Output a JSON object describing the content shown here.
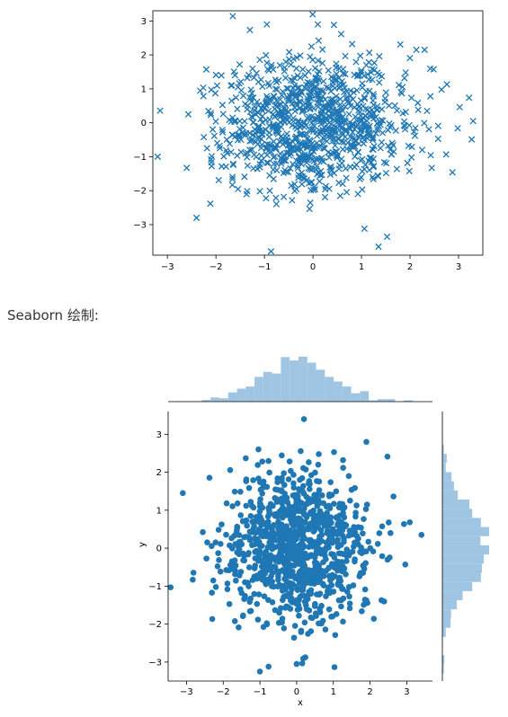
{
  "caption": "Seaborn 绘制:",
  "colors": {
    "points": "#1f77b4",
    "hist": "#9fc5e2"
  },
  "chart_data": [
    {
      "type": "scatter",
      "marker": "x",
      "xlim": [
        -3.3,
        3.5
      ],
      "ylim": [
        -3.9,
        3.3
      ],
      "xticks": [
        "-3",
        "-2",
        "-1",
        "0",
        "1",
        "2",
        "3"
      ],
      "yticks": [
        "-3",
        "-2",
        "-1",
        "0",
        "1",
        "2",
        "3"
      ],
      "xlabel": "",
      "ylabel": "",
      "grid": false,
      "n_points": 1000,
      "distribution": "bivariate standard normal",
      "notable_points": [
        {
          "x": 3.3,
          "y": 0.05
        },
        {
          "x": 1.35,
          "y": -3.65
        },
        {
          "x": -0.95,
          "y": 2.9
        },
        {
          "x": 0.1,
          "y": 2.9
        },
        {
          "x": -3.2,
          "y": -1.0
        },
        {
          "x": -2.4,
          "y": -2.8
        },
        {
          "x": 2.3,
          "y": 2.15
        }
      ]
    },
    {
      "type": "scatter",
      "marker": "o",
      "xlim": [
        -3.5,
        3.7
      ],
      "ylim": [
        -3.5,
        3.6
      ],
      "xticks": [
        "-3",
        "-2",
        "-1",
        "0",
        "1",
        "2",
        "3"
      ],
      "yticks": [
        "-3",
        "-2",
        "-1",
        "0",
        "1",
        "2",
        "3"
      ],
      "xlabel": "x",
      "ylabel": "y",
      "grid": false,
      "n_points": 1000,
      "distribution": "bivariate standard normal",
      "marginals": "histograms (top: x, right: y)",
      "notable_points": [
        {
          "x": 0.2,
          "y": 3.4
        },
        {
          "x": -1.0,
          "y": -3.25
        },
        {
          "x": 3.4,
          "y": 0.35
        },
        {
          "x": 1.9,
          "y": 2.8
        },
        {
          "x": -3.1,
          "y": 1.45
        },
        {
          "x": 0.0,
          "y": -3.05
        }
      ]
    }
  ]
}
